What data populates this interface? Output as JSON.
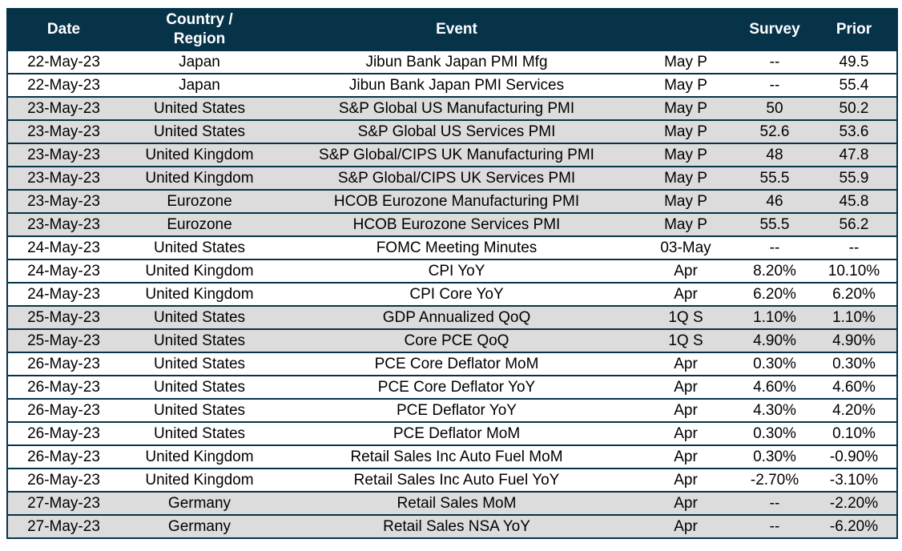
{
  "colors": {
    "header_bg": "#073349",
    "header_text": "#ffffff",
    "border": "#073349",
    "row_bg": "#ffffff",
    "row_alt_bg": "#dcdcdc",
    "text": "#000000",
    "page_bg": "#ffffff"
  },
  "table": {
    "columns": {
      "date": "Date",
      "region": "Country / Region",
      "event": "Event",
      "period": "",
      "survey": "Survey",
      "prior": "Prior"
    },
    "rows": [
      {
        "date": "22-May-23",
        "region": "Japan",
        "event": "Jibun Bank Japan PMI Mfg",
        "period": "May P",
        "survey": "--",
        "prior": "49.5"
      },
      {
        "date": "22-May-23",
        "region": "Japan",
        "event": "Jibun Bank Japan PMI Services",
        "period": "May P",
        "survey": "--",
        "prior": "55.4"
      },
      {
        "date": "23-May-23",
        "region": "United States",
        "event": "S&P Global US Manufacturing PMI",
        "period": "May P",
        "survey": "50",
        "prior": "50.2"
      },
      {
        "date": "23-May-23",
        "region": "United States",
        "event": "S&P Global US Services PMI",
        "period": "May P",
        "survey": "52.6",
        "prior": "53.6"
      },
      {
        "date": "23-May-23",
        "region": "United Kingdom",
        "event": "S&P Global/CIPS UK Manufacturing PMI",
        "period": "May P",
        "survey": "48",
        "prior": "47.8"
      },
      {
        "date": "23-May-23",
        "region": "United Kingdom",
        "event": "S&P Global/CIPS UK Services PMI",
        "period": "May P",
        "survey": "55.5",
        "prior": "55.9"
      },
      {
        "date": "23-May-23",
        "region": "Eurozone",
        "event": "HCOB Eurozone Manufacturing PMI",
        "period": "May P",
        "survey": "46",
        "prior": "45.8"
      },
      {
        "date": "23-May-23",
        "region": "Eurozone",
        "event": "HCOB Eurozone Services PMI",
        "period": "May P",
        "survey": "55.5",
        "prior": "56.2"
      },
      {
        "date": "24-May-23",
        "region": "United States",
        "event": "FOMC Meeting Minutes",
        "period": "03-May",
        "survey": "--",
        "prior": "--"
      },
      {
        "date": "24-May-23",
        "region": "United Kingdom",
        "event": "CPI YoY",
        "period": "Apr",
        "survey": "8.20%",
        "prior": "10.10%"
      },
      {
        "date": "24-May-23",
        "region": "United Kingdom",
        "event": "CPI Core YoY",
        "period": "Apr",
        "survey": "6.20%",
        "prior": "6.20%"
      },
      {
        "date": "25-May-23",
        "region": "United States",
        "event": "GDP Annualized QoQ",
        "period": "1Q S",
        "survey": "1.10%",
        "prior": "1.10%"
      },
      {
        "date": "25-May-23",
        "region": "United States",
        "event": "Core PCE QoQ",
        "period": "1Q S",
        "survey": "4.90%",
        "prior": "4.90%"
      },
      {
        "date": "26-May-23",
        "region": "United States",
        "event": "PCE Core Deflator MoM",
        "period": "Apr",
        "survey": "0.30%",
        "prior": "0.30%"
      },
      {
        "date": "26-May-23",
        "region": "United States",
        "event": "PCE Core Deflator YoY",
        "period": "Apr",
        "survey": "4.60%",
        "prior": "4.60%"
      },
      {
        "date": "26-May-23",
        "region": "United States",
        "event": "PCE Deflator YoY",
        "period": "Apr",
        "survey": "4.30%",
        "prior": "4.20%"
      },
      {
        "date": "26-May-23",
        "region": "United States",
        "event": "PCE Deflator MoM",
        "period": "Apr",
        "survey": "0.30%",
        "prior": "0.10%"
      },
      {
        "date": "26-May-23",
        "region": "United Kingdom",
        "event": "Retail Sales Inc Auto Fuel MoM",
        "period": "Apr",
        "survey": "0.30%",
        "prior": "-0.90%"
      },
      {
        "date": "26-May-23",
        "region": "United Kingdom",
        "event": "Retail Sales Inc Auto Fuel YoY",
        "period": "Apr",
        "survey": "-2.70%",
        "prior": "-3.10%"
      },
      {
        "date": "27-May-23",
        "region": "Germany",
        "event": "Retail Sales MoM",
        "period": "Apr",
        "survey": "--",
        "prior": "-2.20%"
      },
      {
        "date": "27-May-23",
        "region": "Germany",
        "event": "Retail Sales NSA YoY",
        "period": "Apr",
        "survey": "--",
        "prior": "-6.20%"
      }
    ]
  }
}
